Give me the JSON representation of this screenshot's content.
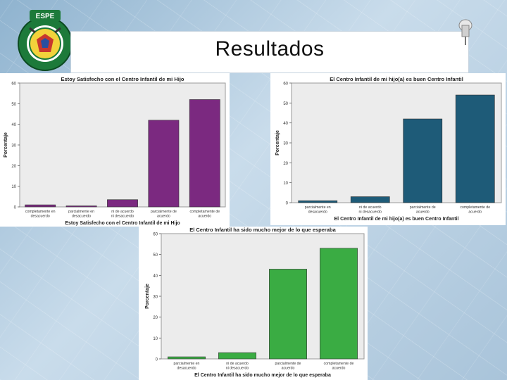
{
  "slide": {
    "title": "Resultados",
    "logo_text": "ESPE"
  },
  "colors": {
    "purple": "#7b2980",
    "teal": "#1e5b78",
    "green": "#3aac43",
    "plot_bg": "#ececec"
  },
  "chart_data": [
    {
      "type": "bar",
      "title": "Estoy Satisfecho con el Centro Infantil de mi Hijo",
      "xlabel": "Estoy Satisfecho con el Centro Infantil de mi Hijo",
      "ylabel": "Porcentaje",
      "categories": [
        "completamente en desacuerdo",
        "parcialmente en desacuerdo",
        "ni de acuerdo ni desacuerdo",
        "parcialmente de acuerdo",
        "completamente de acuerdo"
      ],
      "values": [
        1,
        0.5,
        3.5,
        42,
        52
      ],
      "yticks": [
        0,
        10,
        20,
        30,
        40,
        50,
        60
      ],
      "ylim": [
        0,
        60
      ],
      "color": "#7b2980",
      "grid": false
    },
    {
      "type": "bar",
      "title": "El Centro Infantil de mi hijo(a) es buen Centro Infantil",
      "xlabel": "El Centro Infantil de mi hijo(a) es buen Centro Infantil",
      "ylabel": "Porcentaje",
      "categories": [
        "parcialmente en desacuerdo",
        "ni de acuerdo ni desacuerdo",
        "parcialmente de acuerdo",
        "completamente de acuerdo"
      ],
      "values": [
        1,
        3,
        42,
        54
      ],
      "yticks": [
        0,
        10,
        20,
        30,
        40,
        50,
        60
      ],
      "ylim": [
        0,
        60
      ],
      "color": "#1e5b78",
      "grid": false
    },
    {
      "type": "bar",
      "title": "El Centro Infantil ha sido mucho mejor de lo que esperaba",
      "xlabel": "El Centro Infantil ha sido mucho mejor de lo que esperaba",
      "ylabel": "Porcentaje",
      "categories": [
        "parcialmente en desacuerdo",
        "ni de acuerdo ni desacuerdo",
        "parcialmente de acuerdo",
        "completamente de acuerdo"
      ],
      "values": [
        1,
        3,
        43,
        53
      ],
      "yticks": [
        0,
        10,
        20,
        30,
        40,
        50,
        60
      ],
      "ylim": [
        0,
        60
      ],
      "color": "#3aac43",
      "grid": false
    }
  ]
}
